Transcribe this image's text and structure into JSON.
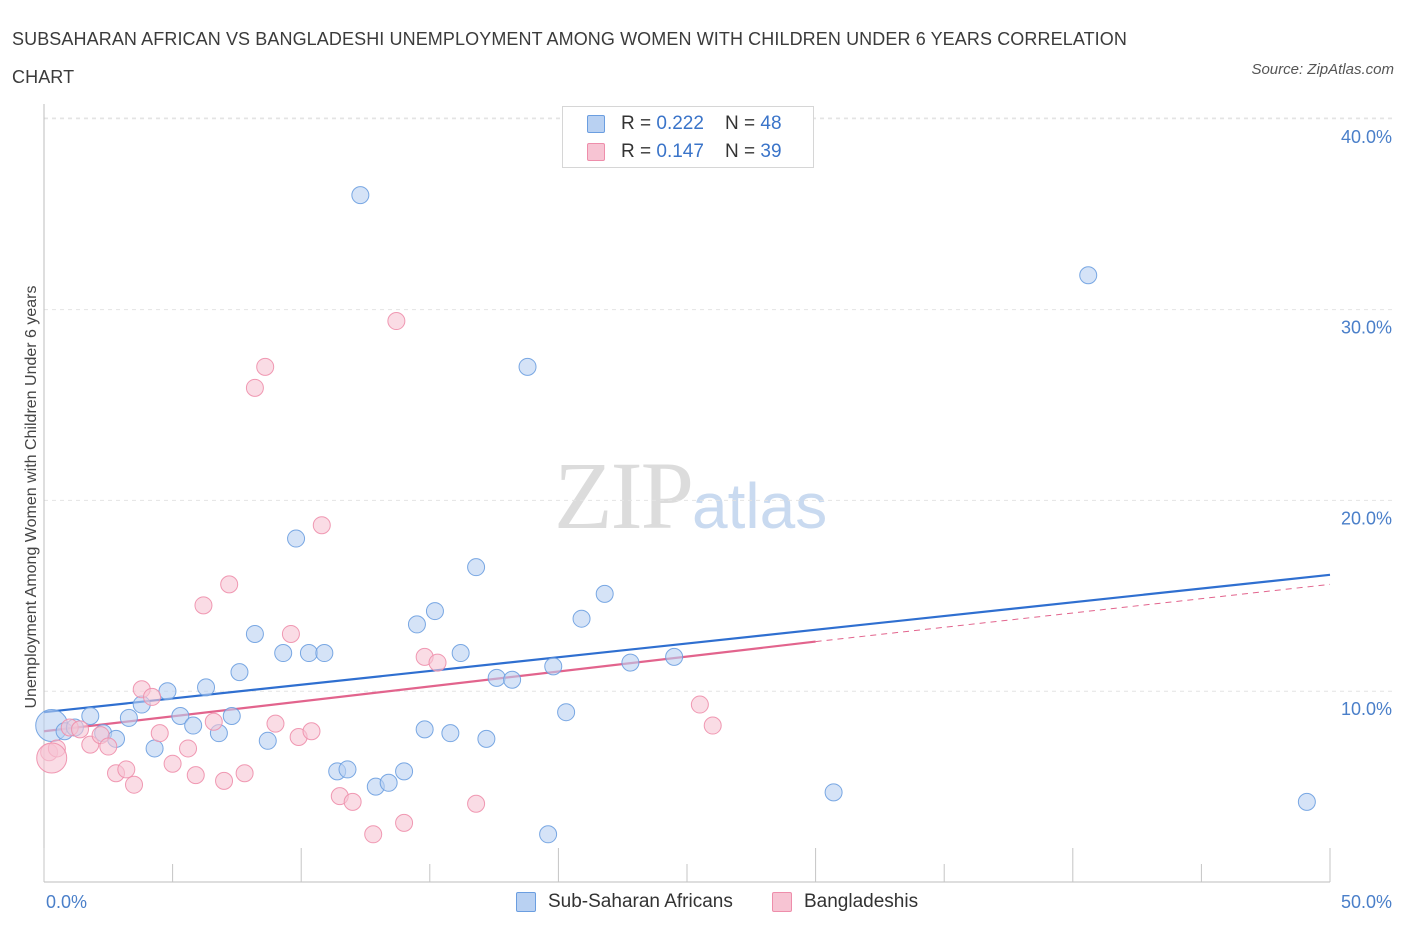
{
  "title": "SUBSAHARAN AFRICAN VS BANGLADESHI UNEMPLOYMENT AMONG WOMEN WITH CHILDREN UNDER 6 YEARS CORRELATION CHART",
  "source": "Source: ZipAtlas.com",
  "watermark": {
    "zip": "ZIP",
    "atlas": "atlas"
  },
  "colors": {
    "blue": "#6b9ee0",
    "blue_fill": "#b9d1f2",
    "pink": "#ee8eab",
    "pink_fill": "#f7c4d3",
    "blue_line": "#2f6fd0",
    "pink_line": "#e2648d",
    "axis_text": "#4a7fc9"
  },
  "legend_top": [
    {
      "r_label": "R = ",
      "r_value": "0.222",
      "n_label": "N = ",
      "n_value": "48"
    },
    {
      "r_label": "R = ",
      "r_value": "0.147",
      "n_label": "N = ",
      "n_value": "39"
    }
  ],
  "chart_data": {
    "type": "scatter",
    "title": "SUBSAHARAN AFRICAN VS BANGLADESHI UNEMPLOYMENT AMONG WOMEN WITH CHILDREN UNDER 6 YEARS CORRELATION CHART",
    "xlabel": "",
    "ylabel": "Unemployment Among Women with Children Under 6 years",
    "xlim": [
      0,
      50
    ],
    "ylim": [
      0,
      42
    ],
    "x_ticks": [
      "0.0%",
      "50.0%"
    ],
    "y_ticks": [
      {
        "value": 10,
        "label": "10.0%"
      },
      {
        "value": 20,
        "label": "20.0%"
      },
      {
        "value": 30,
        "label": "30.0%"
      },
      {
        "value": 40,
        "label": "40.0%"
      }
    ],
    "grid": true,
    "legend_position": "bottom",
    "series": [
      {
        "name": "Sub-Saharan Africans",
        "points": [
          [
            0.3,
            8.2
          ],
          [
            0.8,
            7.9
          ],
          [
            1.2,
            8.1
          ],
          [
            1.8,
            8.7
          ],
          [
            2.3,
            7.8
          ],
          [
            2.8,
            7.5
          ],
          [
            3.3,
            8.6
          ],
          [
            3.8,
            9.3
          ],
          [
            4.3,
            7.0
          ],
          [
            4.8,
            10.0
          ],
          [
            5.3,
            8.7
          ],
          [
            5.8,
            8.2
          ],
          [
            6.3,
            10.2
          ],
          [
            6.8,
            7.8
          ],
          [
            7.3,
            8.7
          ],
          [
            7.6,
            11.0
          ],
          [
            8.2,
            13.0
          ],
          [
            8.7,
            7.4
          ],
          [
            9.3,
            12.0
          ],
          [
            9.8,
            18.0
          ],
          [
            10.3,
            12.0
          ],
          [
            10.9,
            12.0
          ],
          [
            11.4,
            5.8
          ],
          [
            11.8,
            5.9
          ],
          [
            12.3,
            36.0
          ],
          [
            12.9,
            5.0
          ],
          [
            13.4,
            5.2
          ],
          [
            14.0,
            5.8
          ],
          [
            14.5,
            13.5
          ],
          [
            14.8,
            8.0
          ],
          [
            15.2,
            14.2
          ],
          [
            15.8,
            7.8
          ],
          [
            16.2,
            12.0
          ],
          [
            16.8,
            16.5
          ],
          [
            17.2,
            7.5
          ],
          [
            17.6,
            10.7
          ],
          [
            18.2,
            10.6
          ],
          [
            18.8,
            27.0
          ],
          [
            19.6,
            2.5
          ],
          [
            19.8,
            11.3
          ],
          [
            20.3,
            8.9
          ],
          [
            20.9,
            13.8
          ],
          [
            21.8,
            15.1
          ],
          [
            22.8,
            11.5
          ],
          [
            24.5,
            11.8
          ],
          [
            30.7,
            4.7
          ],
          [
            40.6,
            31.8
          ],
          [
            49.1,
            4.2
          ]
        ],
        "trend": {
          "x": [
            0,
            50
          ],
          "y": [
            8.9,
            16.1
          ]
        }
      },
      {
        "name": "Bangladeshis",
        "points": [
          [
            0.2,
            6.8
          ],
          [
            0.5,
            7.0
          ],
          [
            1.0,
            8.1
          ],
          [
            1.4,
            8.0
          ],
          [
            1.8,
            7.2
          ],
          [
            2.2,
            7.7
          ],
          [
            2.5,
            7.1
          ],
          [
            2.8,
            5.7
          ],
          [
            3.2,
            5.9
          ],
          [
            3.5,
            5.1
          ],
          [
            3.8,
            10.1
          ],
          [
            4.2,
            9.7
          ],
          [
            4.5,
            7.8
          ],
          [
            5.0,
            6.2
          ],
          [
            5.6,
            7.0
          ],
          [
            5.9,
            5.6
          ],
          [
            6.2,
            14.5
          ],
          [
            6.6,
            8.4
          ],
          [
            7.0,
            5.3
          ],
          [
            7.2,
            15.6
          ],
          [
            7.8,
            5.7
          ],
          [
            8.2,
            25.9
          ],
          [
            8.6,
            27.0
          ],
          [
            9.0,
            8.3
          ],
          [
            9.6,
            13.0
          ],
          [
            9.9,
            7.6
          ],
          [
            10.4,
            7.9
          ],
          [
            10.8,
            18.7
          ],
          [
            11.5,
            4.5
          ],
          [
            12.0,
            4.2
          ],
          [
            12.8,
            2.5
          ],
          [
            13.7,
            29.4
          ],
          [
            14.0,
            3.1
          ],
          [
            14.8,
            11.8
          ],
          [
            15.3,
            11.5
          ],
          [
            16.8,
            4.1
          ],
          [
            25.5,
            9.3
          ],
          [
            26.0,
            8.2
          ],
          [
            0.3,
            6.5
          ]
        ],
        "trend": {
          "x": [
            0,
            30
          ],
          "y": [
            7.9,
            12.6
          ]
        },
        "trend_dashed": {
          "x": [
            30,
            50
          ],
          "y": [
            12.6,
            15.6
          ]
        }
      }
    ]
  }
}
